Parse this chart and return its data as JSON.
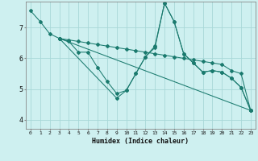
{
  "xlabel": "Humidex (Indice chaleur)",
  "background_color": "#cef0f0",
  "grid_color": "#a8d8d8",
  "line_color": "#1a7a6e",
  "xlim": [
    -0.5,
    23.5
  ],
  "ylim": [
    3.7,
    7.85
  ],
  "xticks": [
    0,
    1,
    2,
    3,
    4,
    5,
    6,
    7,
    8,
    9,
    10,
    11,
    12,
    13,
    14,
    15,
    16,
    17,
    18,
    19,
    20,
    21,
    22,
    23
  ],
  "yticks": [
    4,
    5,
    6,
    7
  ],
  "lines": [
    {
      "x": [
        0,
        1,
        2,
        3,
        4,
        5,
        6,
        7,
        8,
        9,
        10,
        11,
        12,
        13,
        14,
        15,
        16,
        17,
        18,
        19,
        20,
        21,
        22,
        23
      ],
      "y": [
        7.55,
        7.2,
        6.8,
        6.65,
        6.55,
        6.2,
        6.2,
        5.7,
        5.25,
        4.85,
        4.95,
        5.5,
        6.05,
        6.4,
        7.8,
        7.2,
        6.15,
        5.85,
        5.55,
        5.6,
        5.55,
        5.35,
        5.05,
        4.3
      ]
    },
    {
      "x": [
        3,
        23
      ],
      "y": [
        6.65,
        4.3
      ]
    },
    {
      "x": [
        3,
        4,
        5,
        6,
        7,
        8,
        9,
        10,
        11,
        12,
        13,
        14,
        15,
        16,
        17,
        18,
        19,
        20,
        21,
        22,
        23
      ],
      "y": [
        6.65,
        6.6,
        6.55,
        6.5,
        6.45,
        6.4,
        6.35,
        6.3,
        6.25,
        6.2,
        6.15,
        6.1,
        6.05,
        6.0,
        5.95,
        5.9,
        5.85,
        5.8,
        5.6,
        5.5,
        4.3
      ]
    },
    {
      "x": [
        3,
        9,
        10,
        11,
        12,
        13,
        14,
        15,
        16,
        17,
        18,
        19,
        20,
        21,
        22,
        23
      ],
      "y": [
        6.65,
        4.7,
        4.95,
        5.5,
        6.05,
        6.35,
        7.8,
        7.2,
        6.15,
        5.85,
        5.55,
        5.6,
        5.55,
        5.35,
        5.05,
        4.3
      ]
    }
  ]
}
